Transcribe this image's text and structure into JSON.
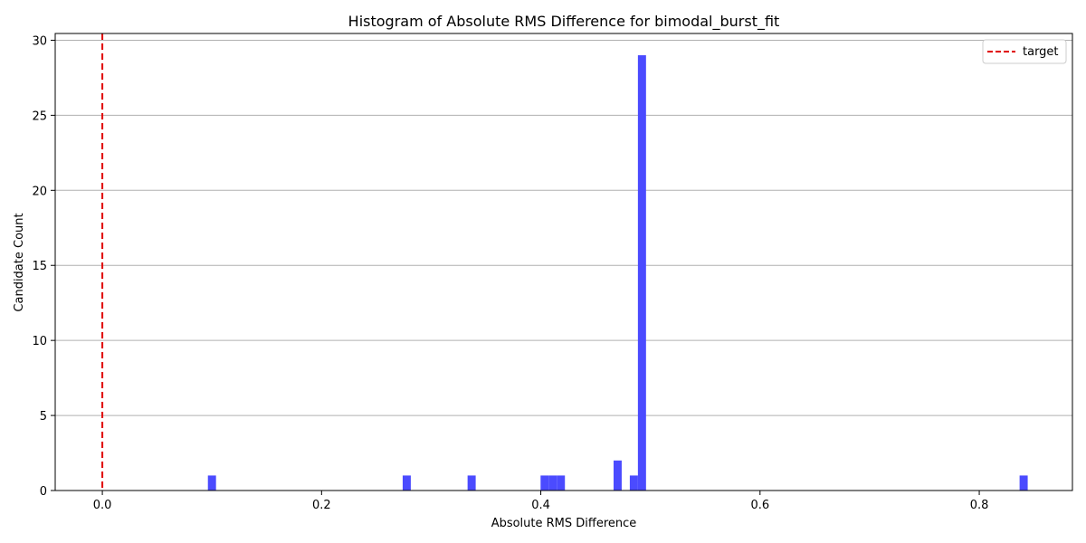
{
  "chart_data": {
    "type": "bar",
    "title": "Histogram of Absolute RMS Difference for bimodal_burst_fit",
    "xlabel": "Absolute RMS Difference",
    "ylabel": "Candidate Count",
    "xlim": [
      -0.043,
      0.885
    ],
    "ylim": [
      0,
      30.45
    ],
    "xticks": [
      0.0,
      0.2,
      0.4,
      0.6,
      0.8
    ],
    "xtick_labels": [
      "0.0",
      "0.2",
      "0.4",
      "0.6",
      "0.8"
    ],
    "yticks": [
      0,
      5,
      10,
      15,
      20,
      25,
      30
    ],
    "ytick_labels": [
      "0",
      "5",
      "10",
      "15",
      "20",
      "25",
      "30"
    ],
    "grid": "y",
    "bar_width": 0.0074,
    "bar_color": "#4b4bff",
    "bins": [
      {
        "x": 0.1,
        "count": 1
      },
      {
        "x": 0.2777,
        "count": 1
      },
      {
        "x": 0.3369,
        "count": 1
      },
      {
        "x": 0.4035,
        "count": 1
      },
      {
        "x": 0.4109,
        "count": 1
      },
      {
        "x": 0.4183,
        "count": 1
      },
      {
        "x": 0.4701,
        "count": 2
      },
      {
        "x": 0.4849,
        "count": 1
      },
      {
        "x": 0.4923,
        "count": 29
      },
      {
        "x": 0.8405,
        "count": 1
      }
    ],
    "reference_line": {
      "x": 0.0,
      "label": "target",
      "color": "#e00000",
      "style": "dashed"
    },
    "legend": {
      "position": "top-right",
      "entries": [
        "target"
      ]
    }
  }
}
